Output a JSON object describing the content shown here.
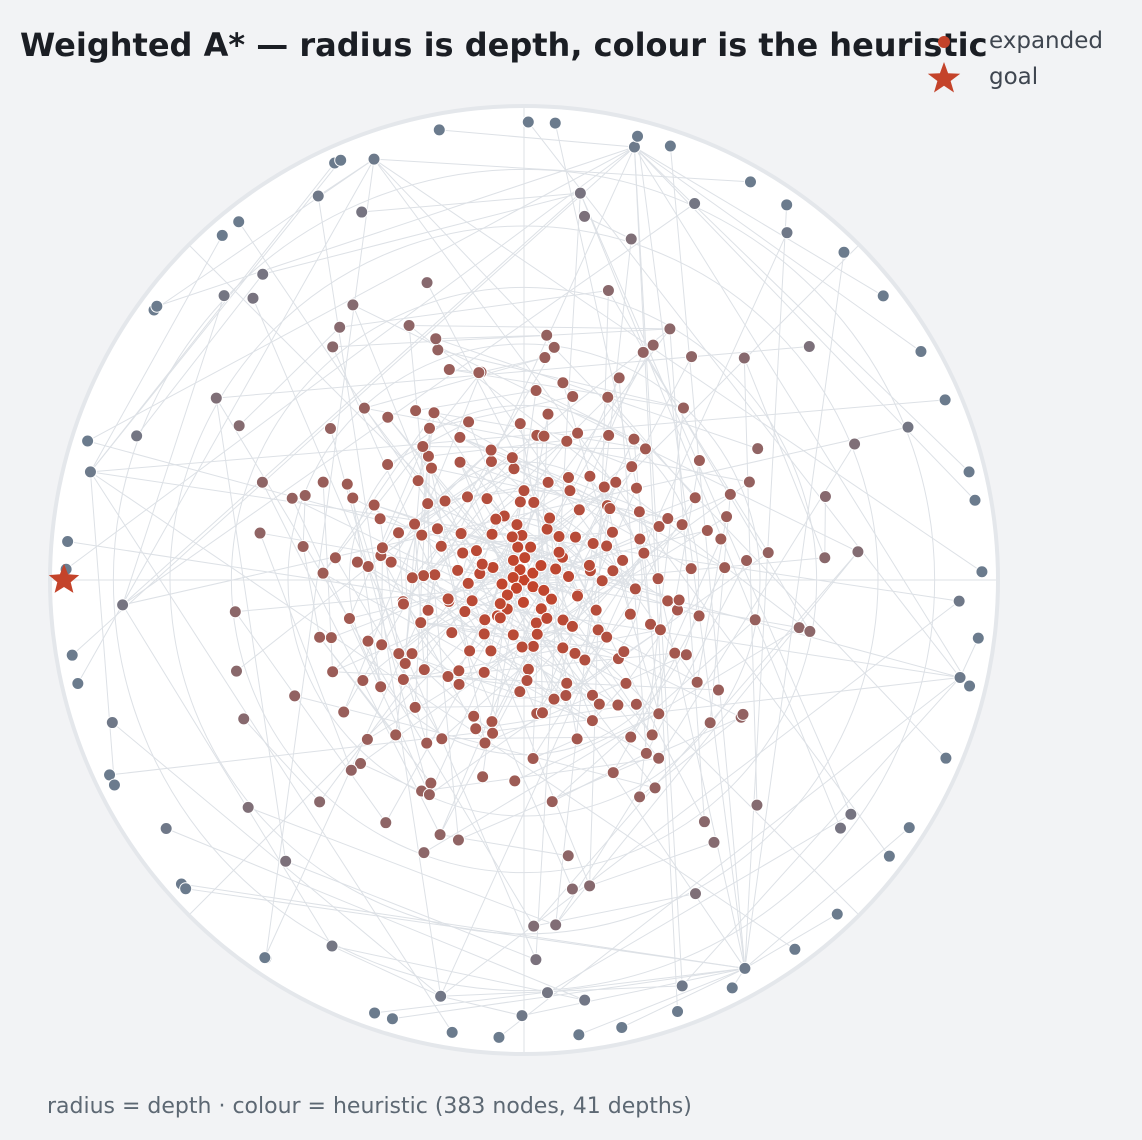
{
  "title": "Weighted A* — radius is depth, colour is the heuristic",
  "legend": {
    "items": [
      {
        "label": "expanded",
        "marker": "circle",
        "color": "#c4432a"
      },
      {
        "label": "goal",
        "marker": "star",
        "color": "#c4432a"
      }
    ]
  },
  "caption": "radius = depth · colour = heuristic (383 nodes, 41 depths)",
  "colors": {
    "background": "#f2f3f5",
    "plot_background": "#ffffff",
    "grid": "#dde1e6",
    "edge": "#dde1e6",
    "heuristic_low": "#c4432a",
    "heuristic_high": "#6b7b8d"
  },
  "chart_data": {
    "type": "scatter",
    "projection": "polar",
    "title": "Weighted A* — radius is depth, colour is the heuristic",
    "xlabel": "",
    "ylabel": "",
    "radial_axis": {
      "quantity": "depth",
      "range": [
        0,
        41
      ],
      "grid": true
    },
    "angular_axis": {
      "grid": true
    },
    "color_encoding": "heuristic",
    "legend_position": "top-right",
    "total_nodes": 383,
    "total_depths": 41,
    "goal": {
      "label": "goal",
      "depth": 41
    },
    "series": [
      {
        "name": "expanded",
        "points": [
          {
            "x": 0.0,
            "y": 0.08
          },
          {
            "x": 0.0,
            "y": 0.83
          }
        ]
      },
      {
        "name": "goal",
        "points": [
          {
            "x": 0.0,
            "y": 0.03
          }
        ]
      }
    ]
  }
}
